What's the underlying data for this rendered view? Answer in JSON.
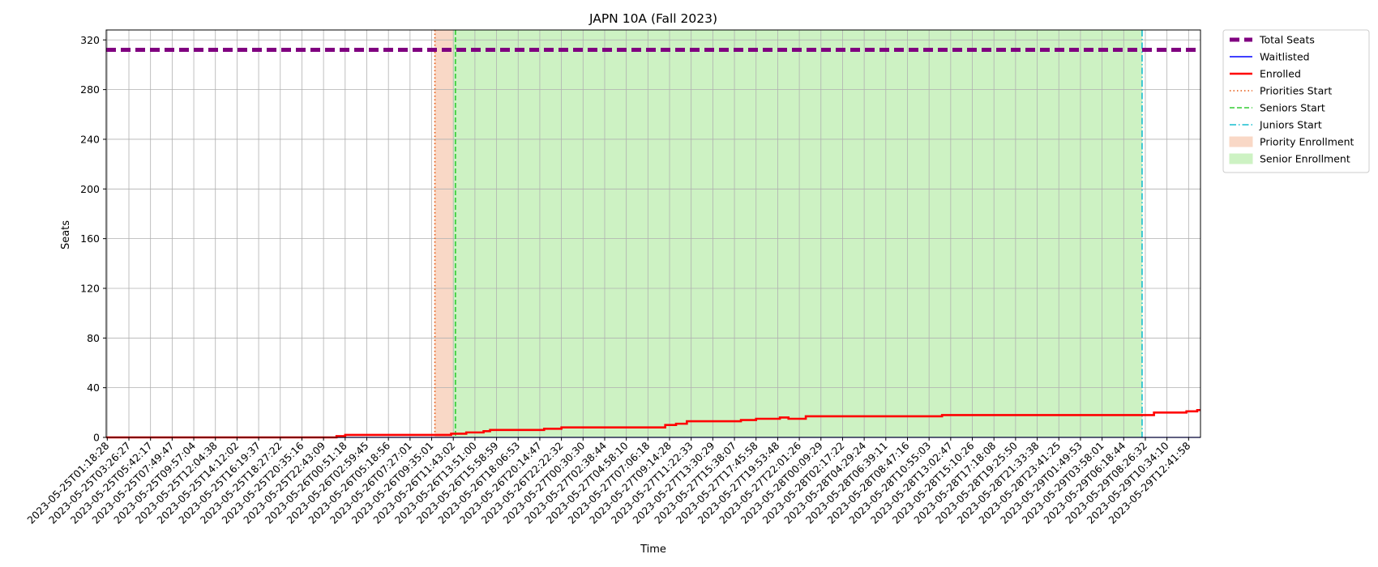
{
  "chart_data": {
    "type": "line",
    "title": "JAPN 10A (Fall 2023)",
    "xlabel": "Time",
    "ylabel": "Seats",
    "ylim": [
      0,
      328
    ],
    "yticks": [
      0,
      40,
      80,
      120,
      160,
      200,
      240,
      280,
      320
    ],
    "grid": true,
    "legend_position": "outside-top-right",
    "x_tick_labels": [
      "2023-05-25T01:18:28",
      "2023-05-25T03:26:27",
      "2023-05-25T05:42:17",
      "2023-05-25T07:49:47",
      "2023-05-25T09:57:04",
      "2023-05-25T12:04:38",
      "2023-05-25T14:12:02",
      "2023-05-25T16:19:37",
      "2023-05-25T18:27:22",
      "2023-05-25T20:35:16",
      "2023-05-25T22:43:09",
      "2023-05-26T00:51:18",
      "2023-05-26T02:59:45",
      "2023-05-26T05:18:56",
      "2023-05-26T07:27:01",
      "2023-05-26T09:35:01",
      "2023-05-26T11:43:02",
      "2023-05-26T13:51:00",
      "2023-05-26T15:58:59",
      "2023-05-26T18:06:53",
      "2023-05-26T20:14:47",
      "2023-05-26T22:22:32",
      "2023-05-27T00:30:30",
      "2023-05-27T02:38:44",
      "2023-05-27T04:58:10",
      "2023-05-27T07:06:18",
      "2023-05-27T09:14:28",
      "2023-05-27T11:22:33",
      "2023-05-27T13:30:29",
      "2023-05-27T15:38:07",
      "2023-05-27T17:45:58",
      "2023-05-27T19:53:48",
      "2023-05-27T22:01:26",
      "2023-05-28T00:09:29",
      "2023-05-28T02:17:22",
      "2023-05-28T04:29:24",
      "2023-05-28T06:39:11",
      "2023-05-28T08:47:16",
      "2023-05-28T10:55:03",
      "2023-05-28T13:02:47",
      "2023-05-28T15:10:26",
      "2023-05-28T17:18:08",
      "2023-05-28T19:25:50",
      "2023-05-28T21:33:38",
      "2023-05-28T23:41:25",
      "2023-05-29T01:49:53",
      "2023-05-29T03:58:01",
      "2023-05-29T06:18:44",
      "2023-05-29T08:26:32",
      "2023-05-29T10:34:10",
      "2023-05-29T12:41:58"
    ],
    "x_range_ticks": [
      -0.05,
      50.55
    ],
    "series": [
      {
        "name": "Total Seats",
        "style": "dashed-thick",
        "color": "#800080",
        "x": [
          -0.05,
          50.55
        ],
        "y": [
          312,
          312
        ]
      },
      {
        "name": "Waitlisted",
        "style": "solid-thin",
        "color": "#0000ff",
        "x": [
          -0.05,
          50.55
        ],
        "y": [
          0,
          0
        ]
      },
      {
        "name": "Enrolled",
        "style": "step",
        "color": "#ff0000",
        "points": [
          [
            -0.05,
            0
          ],
          [
            10.6,
            0
          ],
          [
            10.6,
            1
          ],
          [
            11.0,
            1
          ],
          [
            11.0,
            2
          ],
          [
            15.6,
            2
          ],
          [
            15.6,
            2
          ],
          [
            15.9,
            2
          ],
          [
            15.9,
            3
          ],
          [
            16.6,
            3
          ],
          [
            16.6,
            4
          ],
          [
            17.4,
            4
          ],
          [
            17.4,
            5
          ],
          [
            17.7,
            5
          ],
          [
            17.7,
            6
          ],
          [
            20.2,
            6
          ],
          [
            20.2,
            7
          ],
          [
            21.0,
            7
          ],
          [
            21.0,
            8
          ],
          [
            25.8,
            8
          ],
          [
            25.8,
            10
          ],
          [
            26.3,
            10
          ],
          [
            26.3,
            11
          ],
          [
            26.8,
            11
          ],
          [
            26.8,
            13
          ],
          [
            29.3,
            13
          ],
          [
            29.3,
            14
          ],
          [
            30.0,
            14
          ],
          [
            30.0,
            15
          ],
          [
            31.1,
            15
          ],
          [
            31.1,
            16
          ],
          [
            31.5,
            16
          ],
          [
            31.5,
            15
          ],
          [
            32.3,
            15
          ],
          [
            32.3,
            17
          ],
          [
            38.6,
            17
          ],
          [
            38.6,
            18
          ],
          [
            48.0,
            18
          ],
          [
            48.0,
            18
          ],
          [
            48.4,
            18
          ],
          [
            48.4,
            20
          ],
          [
            49.9,
            20
          ],
          [
            49.9,
            21
          ],
          [
            50.4,
            21
          ],
          [
            50.4,
            22
          ],
          [
            50.55,
            22
          ]
        ]
      }
    ],
    "markers": [
      {
        "name": "Priorities Start",
        "style": "dotted",
        "color": "#e6550d",
        "x": 15.15
      },
      {
        "name": "Seniors Start",
        "style": "dashed",
        "color": "#33cc33",
        "x": 16.1
      },
      {
        "name": "Juniors Start",
        "style": "dashdot",
        "color": "#17becf",
        "x": 47.85
      }
    ],
    "spans": [
      {
        "name": "Priority Enrollment",
        "color": "#f9d8c6",
        "x0": 15.15,
        "x1": 16.0
      },
      {
        "name": "Senior Enrollment",
        "color": "#cdf2c3",
        "x0": 16.0,
        "x1": 47.85
      }
    ],
    "legend": [
      "Total Seats",
      "Waitlisted",
      "Enrolled",
      "Priorities Start",
      "Seniors Start",
      "Juniors Start",
      "Priority Enrollment",
      "Senior Enrollment"
    ]
  }
}
